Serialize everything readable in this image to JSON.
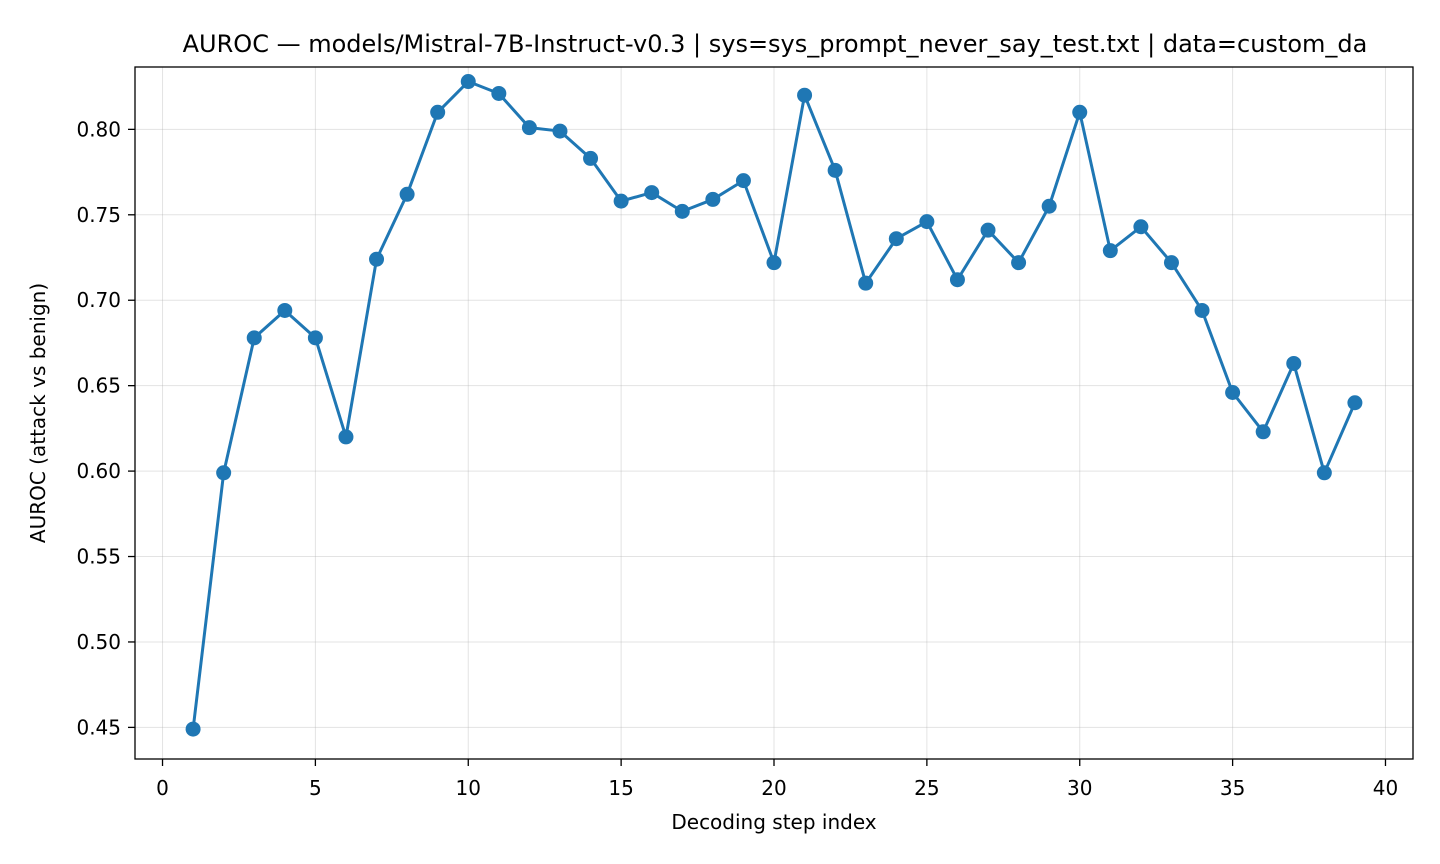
{
  "chart_data": {
    "type": "line",
    "title": "AUROC — models/Mistral-7B-Instruct-v0.3 | sys=sys_prompt_never_say_test.txt | data=custom_da",
    "xlabel": "Decoding step index",
    "ylabel": "AUROC (attack vs benign)",
    "xlim": [
      -0.9,
      40.9
    ],
    "ylim": [
      0.4315,
      0.8365
    ],
    "xticks": [
      0,
      5,
      10,
      15,
      20,
      25,
      30,
      35,
      40
    ],
    "xtick_labels": [
      "0",
      "5",
      "10",
      "15",
      "20",
      "25",
      "30",
      "35",
      "40"
    ],
    "yticks": [
      0.45,
      0.5,
      0.55,
      0.6,
      0.65,
      0.7,
      0.75,
      0.8
    ],
    "ytick_labels": [
      "0.45",
      "0.50",
      "0.55",
      "0.60",
      "0.65",
      "0.70",
      "0.75",
      "0.80"
    ],
    "grid": true,
    "series": [
      {
        "color": "#1f77b4",
        "marker": "circle",
        "x": [
          1,
          2,
          3,
          4,
          5,
          6,
          7,
          8,
          9,
          10,
          11,
          12,
          13,
          14,
          15,
          16,
          17,
          18,
          19,
          20,
          21,
          22,
          23,
          24,
          25,
          26,
          27,
          28,
          29,
          30,
          31,
          32,
          33,
          34,
          35,
          36,
          37,
          38,
          39
        ],
        "y": [
          0.449,
          0.599,
          0.678,
          0.694,
          0.678,
          0.62,
          0.724,
          0.762,
          0.81,
          0.828,
          0.821,
          0.801,
          0.799,
          0.783,
          0.758,
          0.763,
          0.752,
          0.759,
          0.77,
          0.722,
          0.82,
          0.776,
          0.71,
          0.736,
          0.746,
          0.712,
          0.741,
          0.722,
          0.755,
          0.81,
          0.729,
          0.743,
          0.722,
          0.694,
          0.646,
          0.623,
          0.663,
          0.599,
          0.64
        ]
      }
    ]
  }
}
